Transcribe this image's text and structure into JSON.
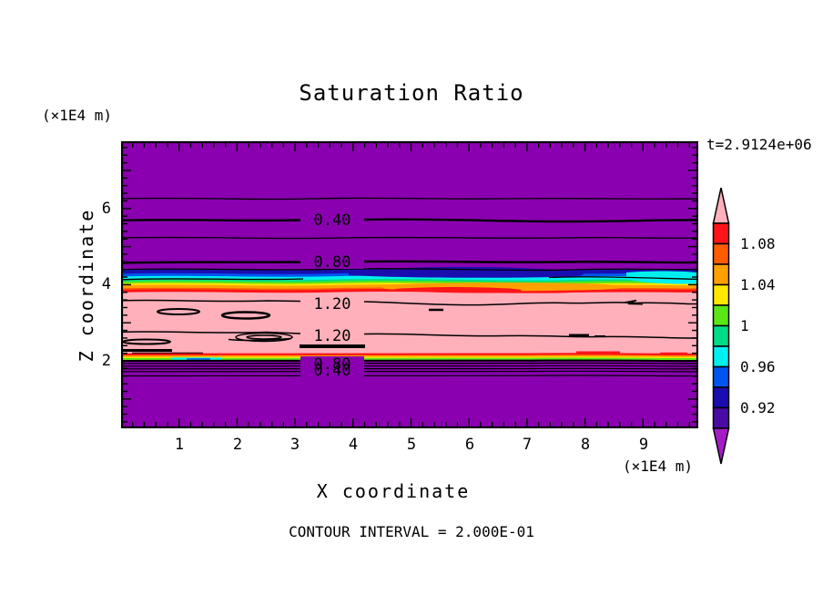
{
  "title": "Saturation Ratio",
  "time_label": "t=2.9124e+06",
  "contour_note": "CONTOUR INTERVAL = 2.000E-01",
  "axes": {
    "x": {
      "label": "X coordinate",
      "unit": "(×1E4 m)",
      "tick_labels": [
        "1",
        "2",
        "3",
        "4",
        "5",
        "6",
        "7",
        "8",
        "9"
      ]
    },
    "y": {
      "label": "Z coordinate",
      "unit": "(×1E4 m)",
      "tick_labels": [
        "6",
        "4",
        "2"
      ]
    }
  },
  "colorbar": {
    "labels": [
      "1.08",
      "1.04",
      "1",
      "0.96",
      "0.92"
    ]
  },
  "contour_labels": [
    "0.40",
    "0.80",
    "1.20",
    "1.20",
    "0.80",
    "0.40"
  ],
  "colors": {
    "background": "#8A00B0",
    "above": "#FFB0BB",
    "below": "#A41CC6",
    "scale": [
      "#FF1418",
      "#FF5C00",
      "#FFA000",
      "#FFE800",
      "#5CE615",
      "#00DC87",
      "#00F0F0",
      "#0055F0",
      "#1A0DB0",
      "#4A0BA5"
    ]
  },
  "chart_data": {
    "type": "heatmap",
    "subtype": "filled-contour",
    "title": "Saturation Ratio",
    "xlabel": "X coordinate (×1E4 m)",
    "ylabel": "Z coordinate (×1E4 m)",
    "x_ticks": [
      1,
      2,
      3,
      4,
      5,
      6,
      7,
      8,
      9
    ],
    "y_ticks": [
      2,
      4,
      6
    ],
    "xlim": [
      0,
      9.95
    ],
    "ylim": [
      0.25,
      7.85
    ],
    "time_annotation": "t=2.9124e+06",
    "contour_interval": 0.2,
    "labeled_contour_values": [
      0.4,
      0.8,
      1.2,
      1.2,
      0.8,
      0.4
    ],
    "colorbar_ticks": [
      1.08,
      1.04,
      1,
      0.96,
      0.92
    ],
    "colorbar_range": [
      0.9,
      1.1
    ],
    "colorbar_step": 0.02,
    "legend_position": "right",
    "grid": false,
    "structure": [
      {
        "z_from": 4.4,
        "z_to": 7.85,
        "fill": "purple (below 0.9)",
        "saturation": "increases downward ~0.1 to 0.9; contours 0.2, 0.4, 0.6, 0.8 run horizontally"
      },
      {
        "z_from": 4.05,
        "z_to": 4.4,
        "fill": "rainbow transition band",
        "saturation": "0.9 to 1.1 sharp increase (navy/blue/cyan/green/yellow/orange/red)"
      },
      {
        "z_from": 2.25,
        "z_to": 4.05,
        "fill": "pink (above 1.1)",
        "saturation": "about 1.2; two 1.20 contour lines with small closed islands"
      },
      {
        "z_from": 2.05,
        "z_to": 2.25,
        "fill": "thin rainbow stripe",
        "saturation": "1.1 to 0.9 sharp decrease"
      },
      {
        "z_from": 0.25,
        "z_to": 2.05,
        "fill": "purple (below 0.9)",
        "saturation": "decreases downward; compressed contours 0.8, 0.6, 0.4, 0.2"
      }
    ]
  }
}
